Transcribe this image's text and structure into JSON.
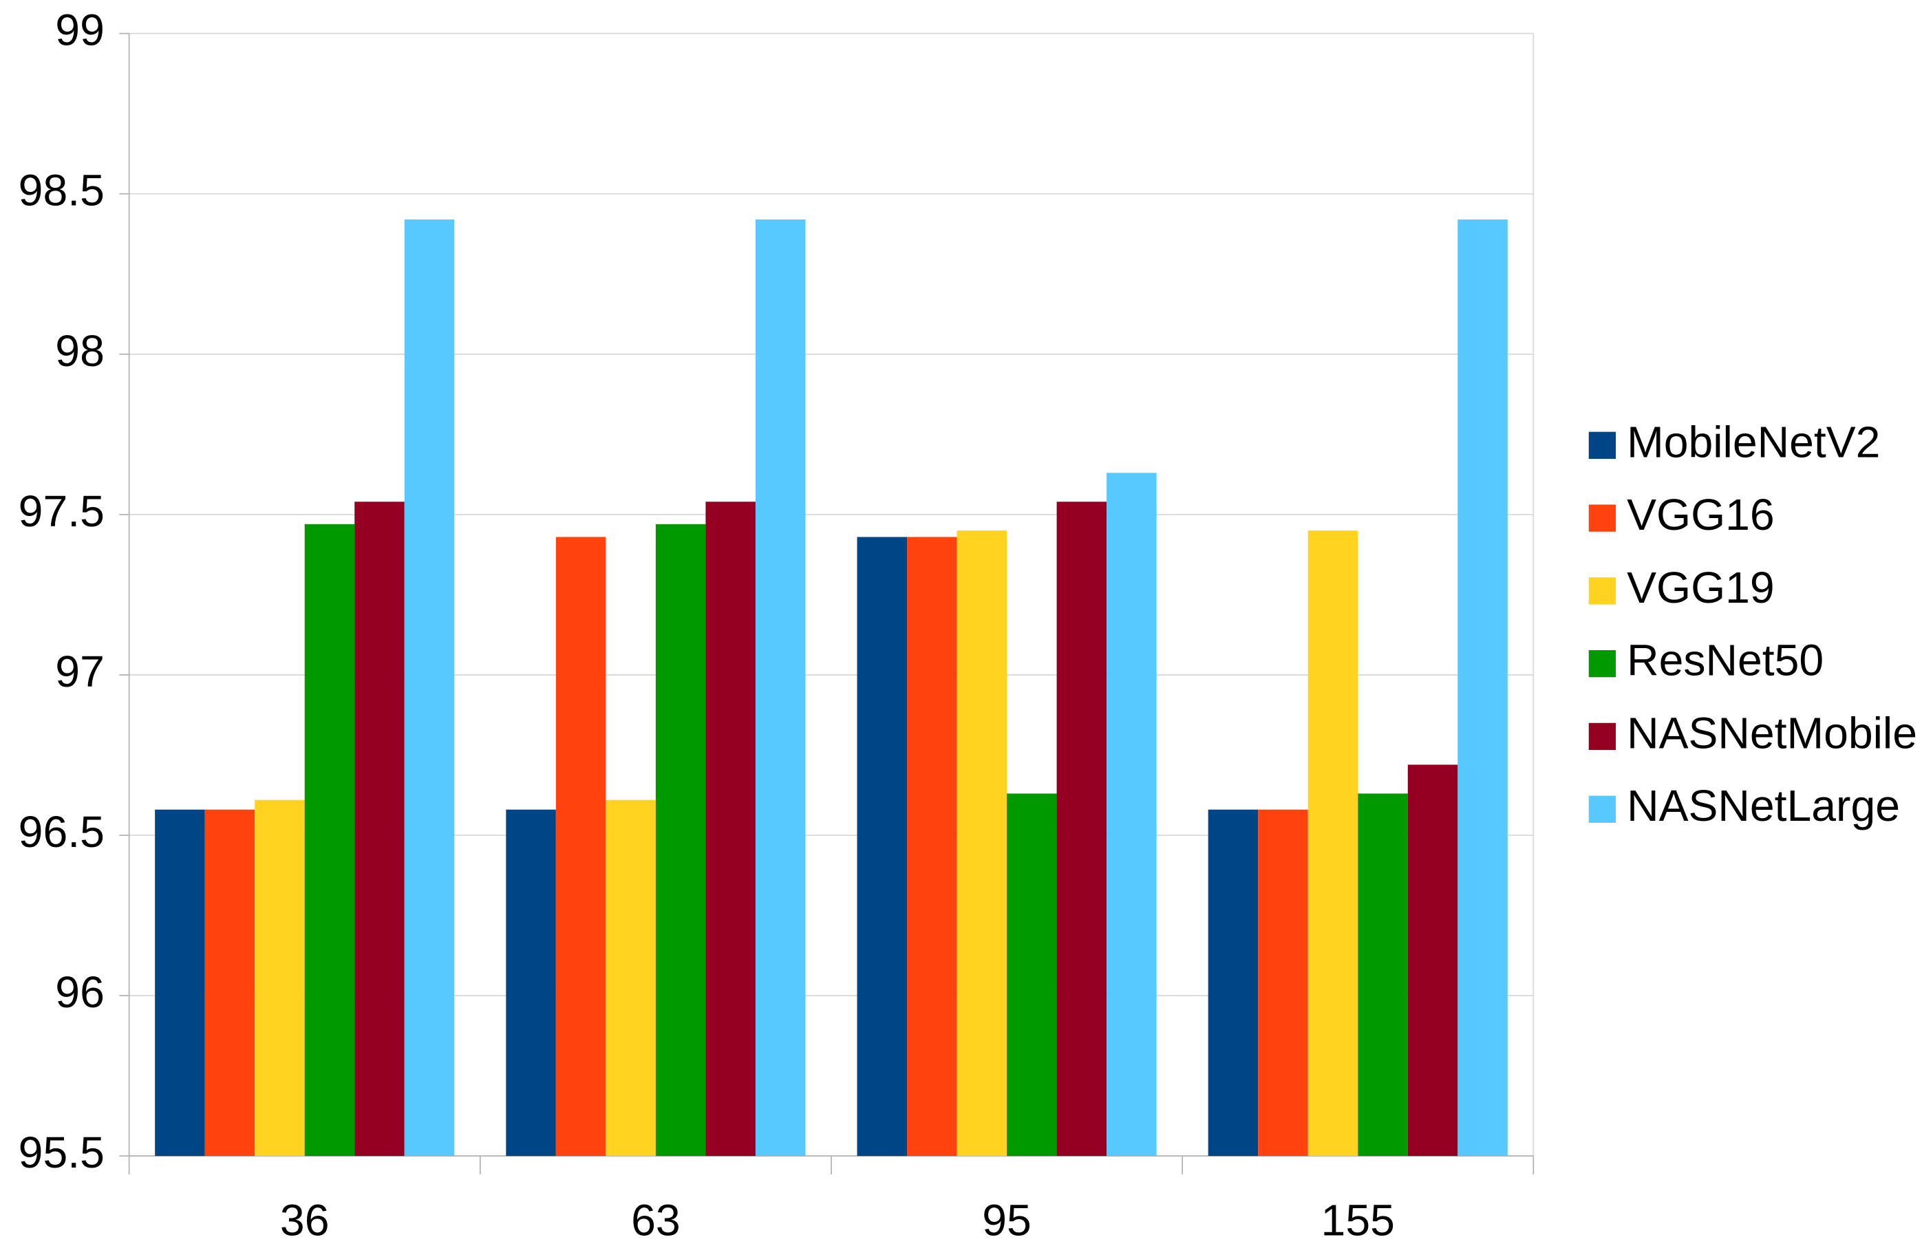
{
  "chart_data": {
    "type": "bar",
    "categories": [
      "36",
      "63",
      "95",
      "155"
    ],
    "series": [
      {
        "name": "MobileNetV2",
        "color": "#004586",
        "values": [
          96.58,
          96.58,
          97.43,
          96.58
        ]
      },
      {
        "name": "VGG16",
        "color": "#ff420e",
        "values": [
          96.58,
          97.43,
          97.43,
          96.58
        ]
      },
      {
        "name": "VGG19",
        "color": "#ffd320",
        "values": [
          96.61,
          96.61,
          97.45,
          97.45
        ]
      },
      {
        "name": "ResNet50",
        "color": "#579d1c",
        "values": [
          97.47,
          97.47,
          96.63,
          96.63
        ]
      },
      {
        "name": "NASNetMobile",
        "color": "#7e0021",
        "values": [
          97.54,
          97.54,
          97.54,
          96.72
        ]
      },
      {
        "name": "NASNetLarge",
        "color": "#83caff",
        "values": [
          98.42,
          98.42,
          97.63,
          98.42
        ]
      }
    ],
    "ylim": [
      95.5,
      99
    ],
    "yticks": [
      95.5,
      96,
      96.5,
      97,
      97.5,
      98,
      98.5,
      99
    ],
    "grid": true,
    "legend": "right"
  }
}
